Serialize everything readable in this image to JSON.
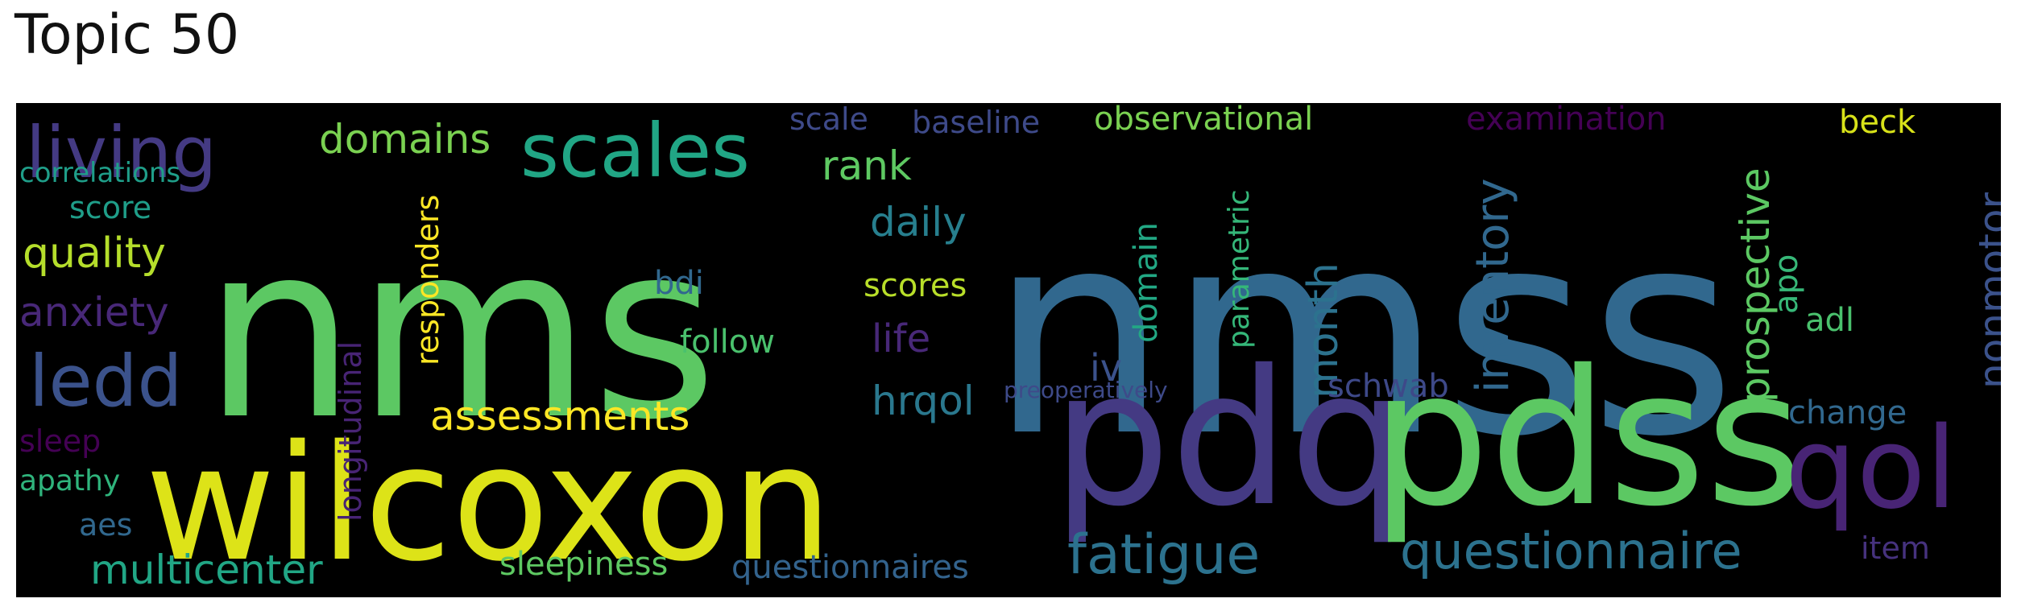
{
  "title": "Topic 50",
  "cloud": {
    "background": "#000000",
    "words": [
      {
        "text": "nmss",
        "color": "#31688e"
      },
      {
        "text": "nms",
        "color": "#5cc863"
      },
      {
        "text": "wilcoxon",
        "color": "#dde318"
      },
      {
        "text": "pdq",
        "color": "#443a83"
      },
      {
        "text": "pdss",
        "color": "#5cc863"
      },
      {
        "text": "scales",
        "color": "#21a685"
      },
      {
        "text": "living",
        "color": "#443a83"
      },
      {
        "text": "ledd",
        "color": "#3b528b"
      },
      {
        "text": "qol",
        "color": "#482475"
      },
      {
        "text": "questionnaire",
        "color": "#2c728e"
      },
      {
        "text": "fatigue",
        "color": "#2c728e"
      },
      {
        "text": "multicenter",
        "color": "#21a685"
      },
      {
        "text": "assessments",
        "color": "#fde725"
      },
      {
        "text": "domains",
        "color": "#7ad151"
      },
      {
        "text": "quality",
        "color": "#b5de2b"
      },
      {
        "text": "anxiety",
        "color": "#482878"
      },
      {
        "text": "rank",
        "color": "#5ec962"
      },
      {
        "text": "daily",
        "color": "#277f8e"
      },
      {
        "text": "prospective",
        "color": "#5cc863"
      },
      {
        "text": "inventory",
        "color": "#31688e"
      },
      {
        "text": "nonmotor",
        "color": "#3b528b"
      },
      {
        "text": "hrqol",
        "color": "#2a788e"
      },
      {
        "text": "month",
        "color": "#2c728e"
      },
      {
        "text": "life",
        "color": "#482878"
      },
      {
        "text": "observational",
        "color": "#7ad151"
      },
      {
        "text": "examination",
        "color": "#440154"
      },
      {
        "text": "baseline",
        "color": "#3e4a89"
      },
      {
        "text": "scale",
        "color": "#3e4a89"
      },
      {
        "text": "beck",
        "color": "#d8e219"
      },
      {
        "text": "change",
        "color": "#31688e"
      },
      {
        "text": "item",
        "color": "#46327e"
      },
      {
        "text": "adl",
        "color": "#4ac16d"
      },
      {
        "text": "apo",
        "color": "#37b878"
      },
      {
        "text": "schwab",
        "color": "#3e4989"
      },
      {
        "text": "domain",
        "color": "#22a884"
      },
      {
        "text": "parametric",
        "color": "#35b779"
      },
      {
        "text": "iv",
        "color": "#3b528b"
      },
      {
        "text": "preoperatively",
        "color": "#3e4a89"
      },
      {
        "text": "responders",
        "color": "#fde725"
      },
      {
        "text": "longitudinal",
        "color": "#482475"
      },
      {
        "text": "scores",
        "color": "#b8de29"
      },
      {
        "text": "follow",
        "color": "#4ac16d"
      },
      {
        "text": "bdi",
        "color": "#31688e"
      },
      {
        "text": "sleepiness",
        "color": "#5ec962"
      },
      {
        "text": "questionnaires",
        "color": "#33638d"
      },
      {
        "text": "correlations",
        "color": "#1f9e89"
      },
      {
        "text": "score",
        "color": "#1f9e89"
      },
      {
        "text": "sleep",
        "color": "#440154"
      },
      {
        "text": "apathy",
        "color": "#2fb47c"
      },
      {
        "text": "aes",
        "color": "#31688e"
      }
    ]
  }
}
